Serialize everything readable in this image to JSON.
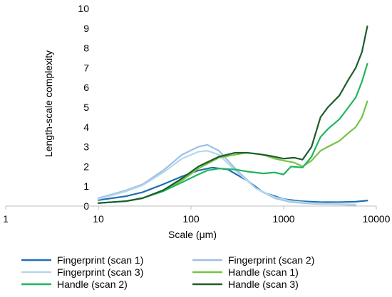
{
  "chart_data": {
    "type": "line",
    "title": "",
    "xlabel": "Scale (μm)",
    "ylabel": "Length-scale complexity",
    "x_scale": "log",
    "xlim": [
      1,
      10000
    ],
    "ylim": [
      0,
      10
    ],
    "x_ticks": [
      1,
      10,
      100,
      1000,
      10000
    ],
    "x_tick_labels": [
      "1",
      "10",
      "100",
      "1000",
      "10000"
    ],
    "y_ticks": [
      0,
      1,
      2,
      3,
      4,
      5,
      6,
      7,
      8,
      9,
      10
    ],
    "y_tick_labels": [
      "0",
      "1",
      "2",
      "3",
      "4",
      "5",
      "6",
      "7",
      "8",
      "9",
      "10"
    ],
    "grid": false,
    "legend_position": "bottom",
    "series": [
      {
        "name": "Fingerprint (scan 1)",
        "color": "#1f6fb5",
        "x": [
          10,
          20,
          30,
          50,
          80,
          120,
          170,
          250,
          400,
          600,
          1000,
          1500,
          2500,
          4000,
          6000,
          8000
        ],
        "y": [
          0.3,
          0.5,
          0.7,
          1.1,
          1.5,
          1.8,
          1.95,
          1.85,
          1.3,
          0.7,
          0.35,
          0.25,
          0.2,
          0.2,
          0.22,
          0.28
        ]
      },
      {
        "name": "Fingerprint (scan 2)",
        "color": "#9cc0e4",
        "x": [
          10,
          20,
          30,
          50,
          80,
          120,
          150,
          200,
          300,
          500,
          800,
          1200,
          2000,
          4000,
          6000
        ],
        "y": [
          0.4,
          0.8,
          1.1,
          1.8,
          2.6,
          3.0,
          3.1,
          2.8,
          1.9,
          0.9,
          0.4,
          0.2,
          0.12,
          0.08,
          0.05
        ]
      },
      {
        "name": "Fingerprint (scan 3)",
        "color": "#b5d7ec",
        "x": [
          10,
          20,
          30,
          50,
          80,
          120,
          150,
          200,
          300,
          500,
          800,
          1200,
          2000,
          4000,
          6000
        ],
        "y": [
          0.35,
          0.75,
          1.05,
          1.7,
          2.4,
          2.75,
          2.8,
          2.6,
          1.8,
          0.9,
          0.45,
          0.25,
          0.15,
          0.1,
          0.08
        ]
      },
      {
        "name": "Handle (scan 1)",
        "color": "#76c442",
        "x": [
          10,
          20,
          30,
          50,
          80,
          120,
          200,
          300,
          400,
          600,
          800,
          1000,
          1300,
          1600,
          2000,
          2500,
          3000,
          4000,
          5000,
          6000,
          7000,
          8000
        ],
        "y": [
          0.15,
          0.25,
          0.4,
          0.8,
          1.3,
          1.9,
          2.45,
          2.6,
          2.7,
          2.6,
          2.4,
          2.3,
          2.2,
          2.0,
          2.3,
          2.8,
          3.0,
          3.3,
          3.7,
          4.0,
          4.5,
          5.3
        ]
      },
      {
        "name": "Handle (scan 2)",
        "color": "#1fb55e",
        "x": [
          10,
          20,
          30,
          50,
          80,
          120,
          150,
          200,
          300,
          400,
          600,
          800,
          1000,
          1200,
          1600,
          2000,
          2500,
          3000,
          4000,
          5000,
          6000,
          7000,
          8000
        ],
        "y": [
          0.15,
          0.25,
          0.4,
          0.75,
          1.2,
          1.6,
          1.8,
          1.9,
          1.85,
          1.75,
          1.65,
          1.7,
          1.6,
          2.0,
          1.95,
          2.5,
          3.5,
          3.9,
          4.4,
          5.0,
          5.5,
          6.3,
          7.2
        ]
      },
      {
        "name": "Handle (scan 3)",
        "color": "#1e5c2b",
        "x": [
          10,
          20,
          30,
          50,
          80,
          120,
          200,
          300,
          400,
          500,
          700,
          1000,
          1300,
          1600,
          2000,
          2500,
          3000,
          4000,
          5000,
          6000,
          7000,
          8000
        ],
        "y": [
          0.15,
          0.25,
          0.4,
          0.8,
          1.4,
          2.0,
          2.5,
          2.7,
          2.7,
          2.65,
          2.55,
          2.4,
          2.45,
          2.35,
          3.0,
          4.5,
          5.0,
          5.6,
          6.4,
          7.0,
          7.8,
          9.1
        ]
      }
    ]
  }
}
